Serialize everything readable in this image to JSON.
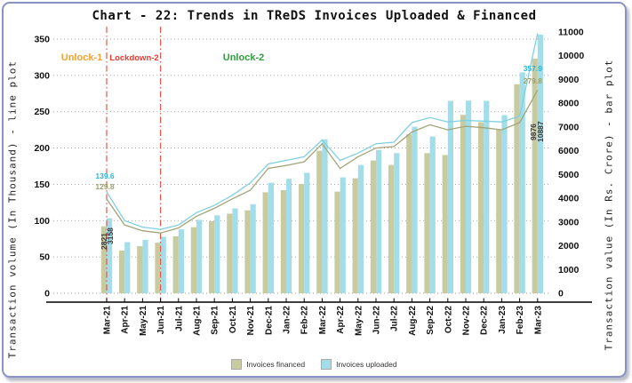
{
  "title": "Chart - 22: Trends in TReDS Invoices Uploaded & Financed",
  "left_axis": {
    "title": "Transaction volume (In Thousand) - line plot",
    "ticks": [
      0,
      50,
      100,
      150,
      200,
      250,
      300,
      350
    ]
  },
  "right_axis": {
    "title": "Transaction value (In Rs. Crore) - bar plot",
    "ticks": [
      0,
      1000,
      2000,
      3000,
      4000,
      5000,
      6000,
      7000,
      8000,
      9000,
      10000,
      11000
    ]
  },
  "annotations": [
    {
      "label": "Unlock-1",
      "color": "#f2a233"
    },
    {
      "label": "Lockdown-2",
      "color": "#e8392f"
    },
    {
      "label": "Unlock-2",
      "color": "#2f9e41"
    }
  ],
  "reference_lines": {
    "color": "#e8554a",
    "at_months": [
      "Mar-21",
      "Jun-21"
    ]
  },
  "legend": [
    {
      "label": "Invoices financed",
      "color": "#c8caa0"
    },
    {
      "label": "Invoices uploaded",
      "color": "#a2dde9"
    }
  ],
  "value_labels": [
    {
      "text": "139.6",
      "color": "#2ab5d5"
    },
    {
      "text": "129.8",
      "color": "#9aa06b"
    },
    {
      "text": "2821",
      "color": "#3a3a3a"
    },
    {
      "text": "3158",
      "color": "#3a3a3a"
    },
    {
      "text": "357.9",
      "color": "#2ab5d5"
    },
    {
      "text": "279.8",
      "color": "#9aa06b"
    },
    {
      "text": "9876",
      "color": "#3a3a3a"
    },
    {
      "text": "10887",
      "color": "#3a3a3a"
    }
  ],
  "chart_data": {
    "type": "bar+line combo, dual axis",
    "categories": [
      "Mar-21",
      "Apr-21",
      "May-21",
      "Jun-21",
      "Jul-21",
      "Aug-21",
      "Sep-21",
      "Oct-21",
      "Nov-21",
      "Dec-21",
      "Jan-22",
      "Feb-22",
      "Mar-22",
      "Apr-22",
      "May-22",
      "Jun-22",
      "Jul-22",
      "Aug-22",
      "Sep-22",
      "Oct-22",
      "Nov-22",
      "Dec-22",
      "Jan-23",
      "Feb-23",
      "Mar-23"
    ],
    "series": [
      {
        "name": "Invoices financed - value (Rs. Crore)",
        "type": "bar",
        "axis": "right",
        "color": "#c8caa0",
        "values": [
          2821,
          1800,
          1980,
          2130,
          2400,
          2780,
          3030,
          3350,
          3490,
          4250,
          4340,
          4600,
          6000,
          4280,
          4840,
          5590,
          5400,
          6690,
          5900,
          5820,
          7510,
          7200,
          6900,
          8800,
          9876
        ]
      },
      {
        "name": "Invoices uploaded - value (Rs. Crore)",
        "type": "bar",
        "axis": "right",
        "color": "#a2dde9",
        "values": [
          3158,
          2150,
          2250,
          2380,
          2690,
          3090,
          3280,
          3570,
          3750,
          4650,
          4820,
          5070,
          6480,
          4880,
          5400,
          6030,
          5900,
          7010,
          6600,
          8100,
          8110,
          8100,
          7500,
          9300,
          10887
        ]
      },
      {
        "name": "Invoices financed - volume (Thousand)",
        "type": "line",
        "axis": "left",
        "color": "#a2a478",
        "values": [
          129.8,
          94,
          86,
          83,
          90,
          106,
          117,
          130,
          142,
          172,
          176,
          181,
          206,
          172,
          188,
          200,
          202,
          222,
          232,
          225,
          230,
          228,
          225,
          235,
          279.8
        ]
      },
      {
        "name": "Invoices uploaded - volume (Thousand)",
        "type": "line",
        "axis": "left",
        "color": "#7fd0e0",
        "values": [
          139.6,
          100,
          91,
          88,
          94,
          111,
          121,
          135,
          152,
          178,
          183,
          188,
          211,
          183,
          193,
          206,
          208,
          235,
          242,
          236,
          238,
          237,
          236,
          244,
          357.9
        ]
      }
    ],
    "left_ylim": [
      0,
      350
    ],
    "right_ylim": [
      0,
      11000
    ],
    "grid": "horizontal dotted",
    "legend_position": "bottom center",
    "title": "Chart - 22: Trends in TReDS Invoices Uploaded & Financed",
    "xlabel": "",
    "ylabel_left": "Transaction volume (In Thousand) - line plot",
    "ylabel_right": "Transaction value (In Rs. Crore) - bar plot"
  }
}
